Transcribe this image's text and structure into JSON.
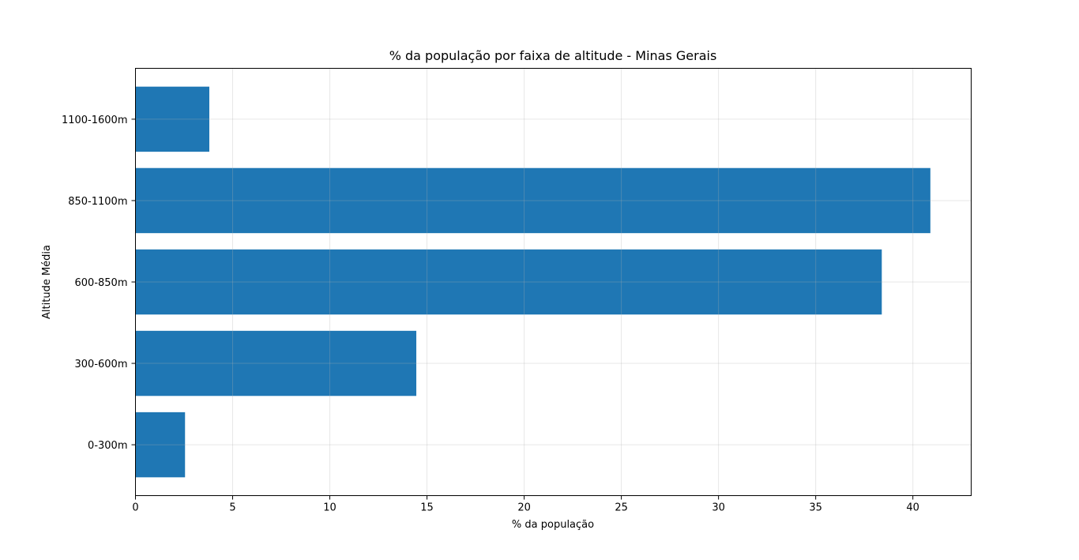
{
  "chart_data": {
    "type": "bar",
    "orientation": "horizontal",
    "title": "% da população por faixa de altitude - Minas Gerais",
    "xlabel": "% da população",
    "ylabel": "Altitude Média",
    "categories": [
      "0-300m",
      "300-600m",
      "600-850m",
      "850-1100m",
      "1100-1600m"
    ],
    "values": [
      2.55,
      14.45,
      38.4,
      40.9,
      3.8
    ],
    "xlim": [
      0,
      43
    ],
    "xticks": [
      0,
      5,
      10,
      15,
      20,
      25,
      30,
      35,
      40
    ],
    "grid": true,
    "bar_color": "#1f77b4"
  }
}
